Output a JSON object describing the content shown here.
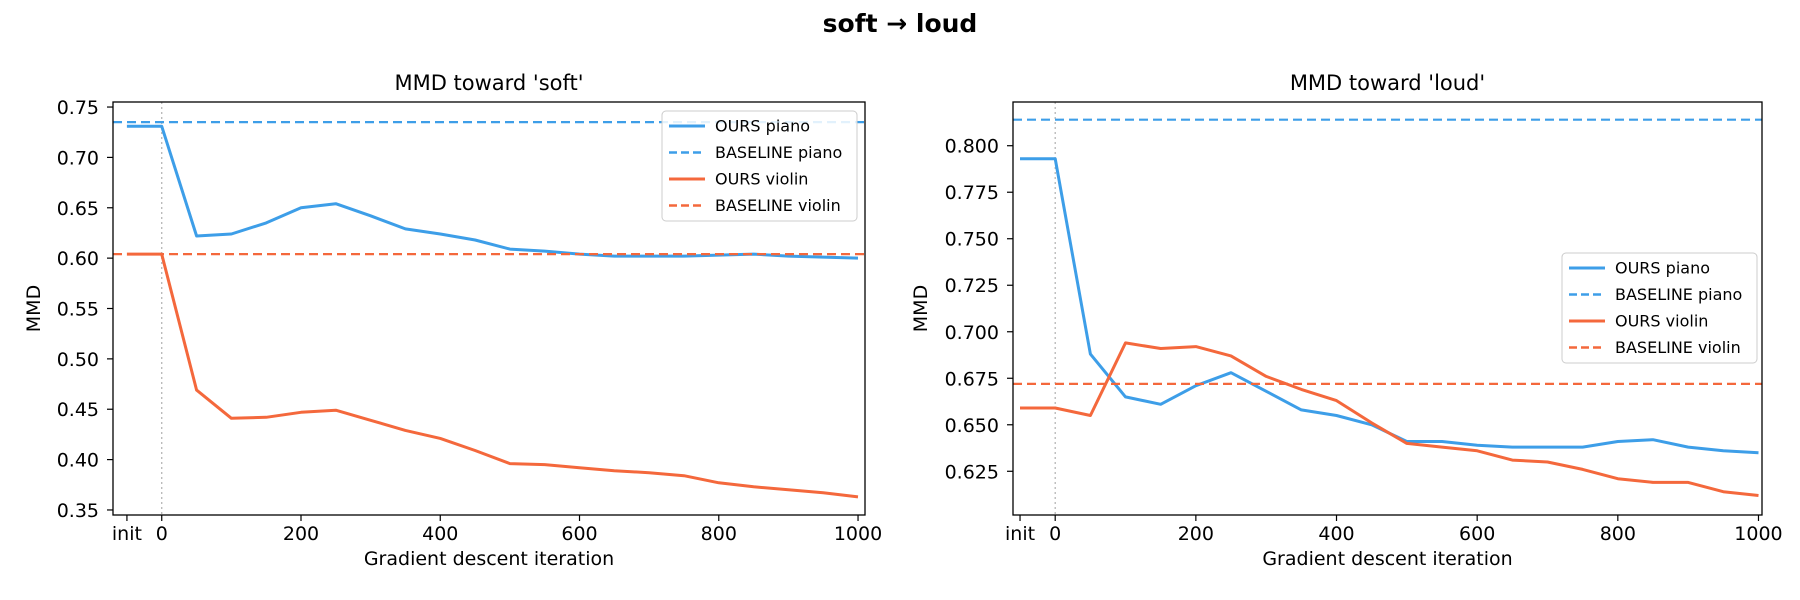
{
  "figure_title": "soft → loud",
  "colors": {
    "piano": "#3d9ee8",
    "violin": "#f4683c",
    "guide": "#b0b0b0"
  },
  "chart_data": [
    {
      "type": "line",
      "title": "MMD toward  'soft'",
      "xlabel": "Gradient descent iteration",
      "ylabel": "MMD",
      "xlim": [
        -70,
        1010
      ],
      "ylim": [
        0.345,
        0.755
      ],
      "xticks": [
        {
          "value": -50,
          "label": "init"
        },
        {
          "value": 0,
          "label": "0"
        },
        {
          "value": 200,
          "label": "200"
        },
        {
          "value": 400,
          "label": "400"
        },
        {
          "value": 600,
          "label": "600"
        },
        {
          "value": 800,
          "label": "800"
        },
        {
          "value": 1000,
          "label": "1000"
        }
      ],
      "yticks": [
        {
          "value": 0.35,
          "label": "0.35"
        },
        {
          "value": 0.4,
          "label": "0.40"
        },
        {
          "value": 0.45,
          "label": "0.45"
        },
        {
          "value": 0.5,
          "label": "0.50"
        },
        {
          "value": 0.55,
          "label": "0.55"
        },
        {
          "value": 0.6,
          "label": "0.60"
        },
        {
          "value": 0.65,
          "label": "0.65"
        },
        {
          "value": 0.7,
          "label": "0.70"
        },
        {
          "value": 0.75,
          "label": "0.75"
        }
      ],
      "vline_x": 0,
      "legend_position": "top-right",
      "x": [
        -50,
        0,
        50,
        100,
        150,
        200,
        250,
        300,
        350,
        400,
        450,
        500,
        550,
        600,
        650,
        700,
        750,
        800,
        850,
        900,
        950,
        1000
      ],
      "series": [
        {
          "name": "OURS piano",
          "instrument": "piano",
          "style": "solid",
          "values": [
            0.731,
            0.731,
            0.622,
            0.624,
            0.635,
            0.65,
            0.654,
            0.642,
            0.629,
            0.624,
            0.618,
            0.609,
            0.607,
            0.604,
            0.602,
            0.602,
            0.602,
            0.603,
            0.604,
            0.602,
            0.601,
            0.6
          ]
        },
        {
          "name": "BASELINE piano",
          "instrument": "piano",
          "style": "dashed",
          "constant": 0.735
        },
        {
          "name": "OURS violin",
          "instrument": "violin",
          "style": "solid",
          "values": [
            0.604,
            0.604,
            0.469,
            0.441,
            0.442,
            0.447,
            0.449,
            0.439,
            0.429,
            0.421,
            0.409,
            0.396,
            0.395,
            0.392,
            0.389,
            0.387,
            0.384,
            0.377,
            0.373,
            0.37,
            0.367,
            0.363
          ]
        },
        {
          "name": "BASELINE violin",
          "instrument": "violin",
          "style": "dashed",
          "constant": 0.604
        }
      ]
    },
    {
      "type": "line",
      "title": "MMD toward  'loud'",
      "xlabel": "Gradient descent iteration",
      "ylabel": "MMD",
      "xlim": [
        -60,
        1005
      ],
      "ylim": [
        0.6015,
        0.8235
      ],
      "xticks": [
        {
          "value": -50,
          "label": "init"
        },
        {
          "value": 0,
          "label": "0"
        },
        {
          "value": 200,
          "label": "200"
        },
        {
          "value": 400,
          "label": "400"
        },
        {
          "value": 600,
          "label": "600"
        },
        {
          "value": 800,
          "label": "800"
        },
        {
          "value": 1000,
          "label": "1000"
        }
      ],
      "yticks": [
        {
          "value": 0.625,
          "label": "0.625"
        },
        {
          "value": 0.65,
          "label": "0.650"
        },
        {
          "value": 0.675,
          "label": "0.675"
        },
        {
          "value": 0.7,
          "label": "0.700"
        },
        {
          "value": 0.725,
          "label": "0.725"
        },
        {
          "value": 0.75,
          "label": "0.750"
        },
        {
          "value": 0.775,
          "label": "0.775"
        },
        {
          "value": 0.8,
          "label": "0.800"
        }
      ],
      "vline_x": 0,
      "legend_position": "center-right",
      "x": [
        -50,
        0,
        50,
        100,
        150,
        200,
        250,
        300,
        350,
        400,
        450,
        500,
        550,
        600,
        650,
        700,
        750,
        800,
        850,
        900,
        950,
        1000
      ],
      "series": [
        {
          "name": "OURS piano",
          "instrument": "piano",
          "style": "solid",
          "values": [
            0.793,
            0.793,
            0.688,
            0.665,
            0.661,
            0.671,
            0.678,
            0.668,
            0.658,
            0.655,
            0.65,
            0.641,
            0.641,
            0.639,
            0.638,
            0.638,
            0.638,
            0.641,
            0.642,
            0.638,
            0.636,
            0.635
          ]
        },
        {
          "name": "BASELINE piano",
          "instrument": "piano",
          "style": "dashed",
          "constant": 0.814
        },
        {
          "name": "OURS violin",
          "instrument": "violin",
          "style": "solid",
          "values": [
            0.659,
            0.659,
            0.655,
            0.694,
            0.691,
            0.692,
            0.687,
            0.676,
            0.669,
            0.663,
            0.651,
            0.64,
            0.638,
            0.636,
            0.631,
            0.63,
            0.626,
            0.621,
            0.619,
            0.619,
            0.614,
            0.612
          ]
        },
        {
          "name": "BASELINE violin",
          "instrument": "violin",
          "style": "dashed",
          "constant": 0.672
        }
      ]
    }
  ]
}
